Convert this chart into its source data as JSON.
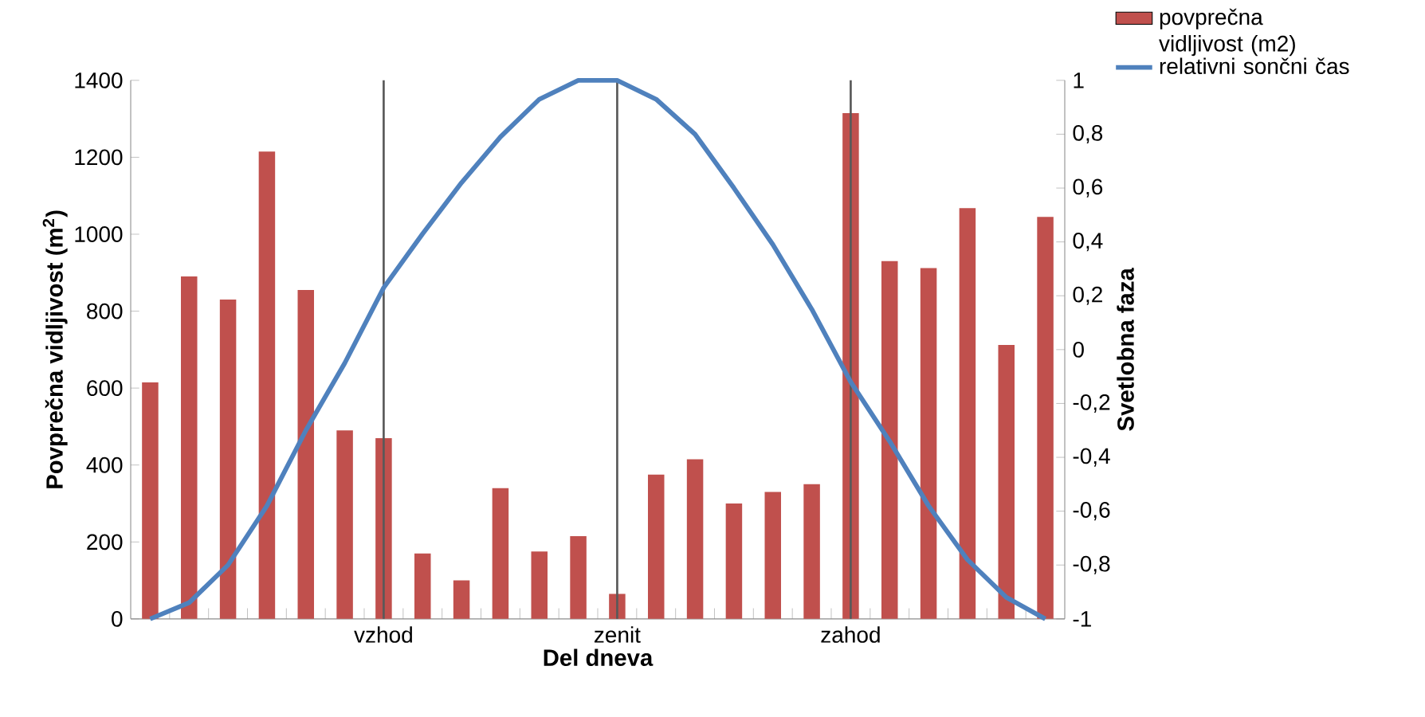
{
  "chart_data": {
    "type": "bar",
    "xlabel": "Del dneva",
    "ylabel": "Povprečna vidljivost (m$^{2}$)",
    "y2label": "Svetlobna faza",
    "categories": [
      null,
      null,
      null,
      null,
      null,
      null,
      "vzhod",
      null,
      null,
      null,
      null,
      null,
      "zenit",
      null,
      null,
      null,
      null,
      null,
      "zahod",
      null,
      null,
      null,
      null,
      null
    ],
    "series": [
      {
        "name": "povprečna vidljivost (m2)",
        "color": "#c0504d",
        "values": [
          615,
          890,
          830,
          1215,
          855,
          490,
          470,
          170,
          100,
          340,
          175,
          215,
          65,
          375,
          415,
          300,
          330,
          350,
          1315,
          930,
          912,
          1068,
          712,
          1045
        ]
      },
      {
        "name": "relativni sončni čas",
        "type": "line",
        "axis": "y2",
        "color": "#4f81bd",
        "values": [
          -1,
          -0.94,
          -0.8,
          -0.58,
          -0.3,
          -0.05,
          0.23,
          0.43,
          0.62,
          0.79,
          0.93,
          1,
          1,
          0.93,
          0.8,
          0.6,
          0.39,
          0.15,
          -0.12,
          -0.34,
          -0.58,
          -0.78,
          -0.92,
          -1
        ]
      }
    ],
    "ylim": [
      0,
      1400
    ],
    "yticks": [
      0,
      200,
      400,
      600,
      800,
      1000,
      1200,
      1400
    ],
    "y2lim": [
      -1,
      1
    ],
    "y2ticks": [
      -1,
      {
        "value": -0.8,
        "label": "-0,8"
      },
      {
        "value": -0.6,
        "label": "-0,6"
      },
      {
        "value": -0.4,
        "label": "-0,4"
      },
      {
        "value": -0.2,
        "label": "-0,2"
      },
      0,
      {
        "value": 0.2,
        "label": "0,2"
      },
      {
        "value": 0.4,
        "label": "0,4"
      },
      {
        "value": 0.6,
        "label": "0,6"
      },
      {
        "value": 0.8,
        "label": "0,8"
      },
      1
    ],
    "ref_lines": [
      {
        "axis": "x",
        "value": "vzhod",
        "color": "#595959"
      },
      {
        "axis": "x",
        "value": "zenit",
        "color": "#595959"
      },
      {
        "axis": "x",
        "value": "zahod",
        "color": "#595959"
      }
    ],
    "grid": false,
    "legend": "right"
  }
}
